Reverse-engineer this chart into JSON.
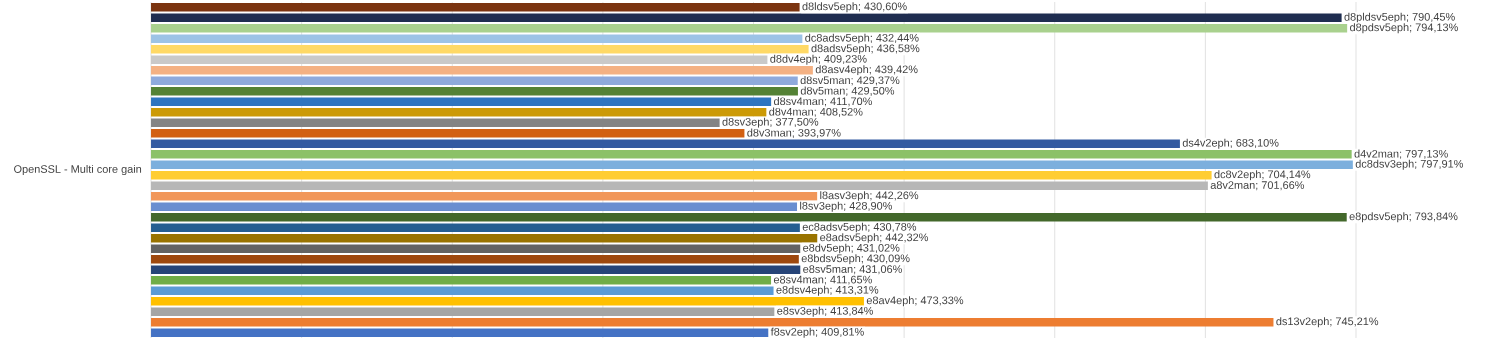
{
  "chart_data": {
    "type": "bar",
    "orientation": "horizontal",
    "ylabel": "OpenSSL - Multi core gain",
    "categories": [
      null,
      null,
      null,
      null,
      null,
      null,
      null,
      null,
      null,
      null,
      null,
      null,
      null,
      null,
      null,
      null,
      null,
      null,
      null,
      null,
      null,
      null,
      null,
      null,
      null,
      null,
      null,
      null,
      null,
      null,
      null,
      null
    ],
    "xlim": [
      0,
      800
    ],
    "xticks": [
      {
        "value": 0,
        "label": null
      },
      {
        "value": 100,
        "label": null
      },
      {
        "value": 200,
        "label": null
      },
      {
        "value": 300,
        "label": null
      },
      {
        "value": 400,
        "label": null
      },
      {
        "value": 500,
        "label": null
      },
      {
        "value": 600,
        "label": null
      },
      {
        "value": 700,
        "label": null
      },
      {
        "value": 800,
        "label": null
      }
    ],
    "grid": "x",
    "values": [
      430.6,
      790.45,
      794.13,
      432.44,
      436.58,
      409.23,
      439.42,
      429.37,
      429.5,
      411.7,
      408.52,
      377.5,
      393.97,
      683.1,
      797.13,
      797.91,
      704.14,
      701.66,
      442.26,
      428.9,
      793.84,
      430.78,
      442.32,
      431.02,
      430.09,
      431.06,
      411.65,
      413.31,
      473.33,
      413.84,
      745.21,
      409.81
    ],
    "colors": [
      "#7b3410",
      "#1f2d50",
      "#a9d18e",
      "#9dc3e6",
      "#ffd966",
      "#c9c9c9",
      "#f4b183",
      "#8faadc",
      "#548235",
      "#2e75c0",
      "#cc9a06",
      "#848484",
      "#d26012",
      "#335aa1",
      "#8cc168",
      "#7cafdd",
      "#ffcd33",
      "#b7b7b7",
      "#f1975a",
      "#698ed0",
      "#43682b",
      "#255e91",
      "#997300",
      "#636363",
      "#9e480e",
      "#264478",
      "#70ad47",
      "#5b9bd5",
      "#ffc000",
      "#a5a5a5",
      "#ed7d31",
      "#4472c4"
    ],
    "value_labels": [
      "d8ldsv5eph; 430,60%",
      "d8pldsv5eph; 790,45%",
      "d8pdsv5eph; 794,13%",
      "dc8adsv5eph; 432,44%",
      "d8adsv5eph; 436,58%",
      "d8dv4eph; 409,23%",
      "d8asv4eph; 439,42%",
      "d8sv5man; 429,37%",
      "d8v5man; 429,50%",
      "d8sv4man; 411,70%",
      "d8v4man; 408,52%",
      "d8sv3eph; 377,50%",
      "d8v3man; 393,97%",
      "ds4v2eph; 683,10%",
      "d4v2man; 797,13%",
      "dc8dsv3eph; 797,91%",
      "dc8v2eph; 704,14%",
      "a8v2man; 701,66%",
      "l8asv3eph; 442,26%",
      "l8sv3eph; 428,90%",
      "e8pdsv5eph; 793,84%",
      "ec8adsv5eph; 430,78%",
      "e8adsv5eph; 442,32%",
      "e8dv5eph; 431,02%",
      "e8bdsv5eph; 430,09%",
      "e8sv5man; 431,06%",
      "e8sv4man; 411,65%",
      "e8dsv4eph; 413,31%",
      "e8av4eph; 473,33%",
      "e8sv3eph; 413,84%",
      "ds13v2eph; 745,21%",
      "f8sv2eph; 409,81%"
    ]
  }
}
